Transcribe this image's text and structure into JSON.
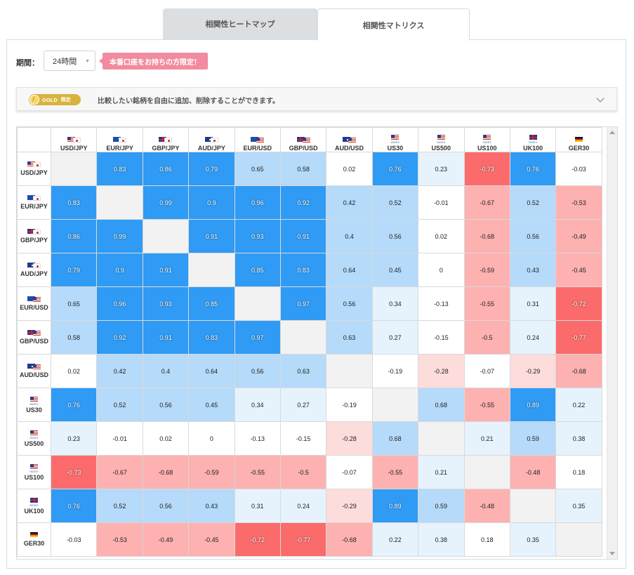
{
  "tabs": [
    {
      "label": "相関性ヒートマップ",
      "active": false
    },
    {
      "label": "相関性マトリクス",
      "active": true
    }
  ],
  "period": {
    "label": "期間：",
    "selected": "24時間"
  },
  "promo": {
    "label": "本番口座をお持ちの方限定！"
  },
  "gold_bar": {
    "badge": "GOLD",
    "badge_level": "限定",
    "text": "比較したい銘柄を自由に追加、削除することができます。",
    "chevron": "chevron-down-icon"
  },
  "matrix": {
    "instruments": [
      {
        "label": "USD/JPY",
        "flags": [
          "us",
          "jp"
        ],
        "index": ""
      },
      {
        "label": "EUR/JPY",
        "flags": [
          "eu",
          "jp"
        ],
        "index": ""
      },
      {
        "label": "GBP/JPY",
        "flags": [
          "gb",
          "jp"
        ],
        "index": ""
      },
      {
        "label": "AUD/JPY",
        "flags": [
          "au",
          "jp"
        ],
        "index": ""
      },
      {
        "label": "EUR/USD",
        "flags": [
          "eu",
          "us"
        ],
        "index": ""
      },
      {
        "label": "GBP/USD",
        "flags": [
          "gb",
          "us"
        ],
        "index": ""
      },
      {
        "label": "AUD/USD",
        "flags": [
          "au",
          "us"
        ],
        "index": ""
      },
      {
        "label": "US30",
        "flags": [
          "us"
        ],
        "index": "INDEX"
      },
      {
        "label": "US500",
        "flags": [
          "us"
        ],
        "index": "INDEX"
      },
      {
        "label": "US100",
        "flags": [
          "us"
        ],
        "index": "INDEX"
      },
      {
        "label": "UK100",
        "flags": [
          "gb"
        ],
        "index": "INDEX"
      },
      {
        "label": "GER30",
        "flags": [
          "de"
        ],
        "index": ""
      }
    ],
    "values": [
      [
        null,
        0.83,
        0.86,
        0.79,
        0.65,
        0.58,
        0.02,
        0.76,
        0.23,
        -0.73,
        0.76,
        -0.03
      ],
      [
        0.83,
        null,
        0.99,
        0.9,
        0.96,
        0.92,
        0.42,
        0.52,
        -0.01,
        -0.67,
        0.52,
        -0.53
      ],
      [
        0.86,
        0.99,
        null,
        0.91,
        0.93,
        0.91,
        0.4,
        0.56,
        0.02,
        -0.68,
        0.56,
        -0.49
      ],
      [
        0.79,
        0.9,
        0.91,
        null,
        0.85,
        0.83,
        0.64,
        0.45,
        0,
        -0.59,
        0.43,
        -0.45
      ],
      [
        0.65,
        0.96,
        0.93,
        0.85,
        null,
        0.97,
        0.56,
        0.34,
        -0.13,
        -0.55,
        0.31,
        -0.72
      ],
      [
        0.58,
        0.92,
        0.91,
        0.83,
        0.97,
        null,
        0.63,
        0.27,
        -0.15,
        -0.5,
        0.24,
        -0.77
      ],
      [
        0.02,
        0.42,
        0.4,
        0.64,
        0.56,
        0.63,
        null,
        -0.19,
        -0.28,
        -0.07,
        -0.29,
        -0.68
      ],
      [
        0.76,
        0.52,
        0.56,
        0.45,
        0.34,
        0.27,
        -0.19,
        null,
        0.68,
        -0.55,
        0.89,
        0.22
      ],
      [
        0.23,
        -0.01,
        0.02,
        0,
        -0.13,
        -0.15,
        -0.28,
        0.68,
        null,
        0.21,
        0.59,
        0.38
      ],
      [
        -0.73,
        -0.67,
        -0.68,
        -0.59,
        -0.55,
        -0.5,
        -0.07,
        -0.55,
        0.21,
        null,
        -0.48,
        0.18
      ],
      [
        0.76,
        0.52,
        0.56,
        0.43,
        0.31,
        0.24,
        -0.29,
        0.89,
        0.59,
        -0.48,
        null,
        0.35
      ],
      [
        -0.03,
        -0.53,
        -0.49,
        -0.45,
        -0.72,
        -0.77,
        -0.68,
        0.22,
        0.38,
        0.18,
        0.35,
        null
      ]
    ],
    "colors": {
      "strong_positive": "#2f9bf5",
      "positive": "#b5dafa",
      "weak_positive": "#e6f3fd",
      "neutral": "#ffffff",
      "weak_negative": "#fddcdc",
      "negative": "#fdb1b1",
      "strong_negative": "#fb6b6b",
      "diagonal": "#f2f2f2"
    }
  }
}
